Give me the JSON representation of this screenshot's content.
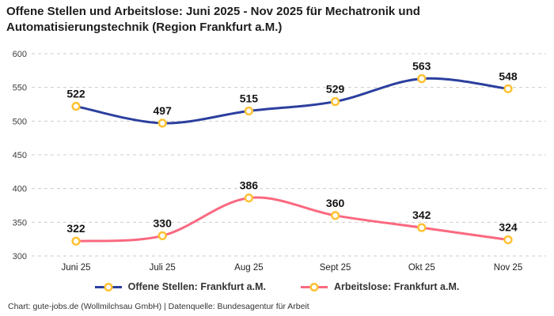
{
  "title": "Offene Stellen und Arbeitslose: Juni 2025 - Nov 2025 für Mechatronik und Automatisierungstechnik (Region Frankfurt a.M.)",
  "footer": "Chart: gute-jobs.de (Wollmilchsau GmbH) | Datenquelle: Bundesagentur für Arbeit",
  "colors": {
    "background": "#ffffff",
    "title_text": "#1d1d1d",
    "grid_line": "#cccccc",
    "axis_text": "#3d3d3d",
    "data_label_text": "#141414",
    "series_open_positions": "#2b3f9e",
    "series_unemployed": "#fa6980",
    "marker_ring": "#ffc233",
    "marker_fill": "#ffffff"
  },
  "chart_data": {
    "type": "line",
    "title": "Offene Stellen und Arbeitslose: Juni 2025 - Nov 2025 für Mechatronik und Automatisierungstechnik (Region Frankfurt a.M.)",
    "categories": [
      "Juni 25",
      "Juli 25",
      "Aug 25",
      "Sept 25",
      "Okt 25",
      "Nov 25"
    ],
    "series": [
      {
        "name": "Offene Stellen: Frankfurt a.M.",
        "values": [
          522,
          497,
          515,
          529,
          563,
          548
        ],
        "color": "#2b3f9e"
      },
      {
        "name": "Arbeitslose: Frankfurt a.M.",
        "values": [
          322,
          330,
          386,
          360,
          342,
          324
        ],
        "color": "#fa6980"
      }
    ],
    "xlabel": "",
    "ylabel": "",
    "ylim": [
      300,
      600
    ],
    "yticks": [
      300,
      350,
      400,
      450,
      500,
      550,
      600
    ],
    "grid": "horizontal-dashed",
    "legend_position": "bottom",
    "line_style": "smooth",
    "data_labels": true,
    "marker": {
      "shape": "circle",
      "ring_color": "#ffc233",
      "fill_color": "#ffffff"
    }
  }
}
